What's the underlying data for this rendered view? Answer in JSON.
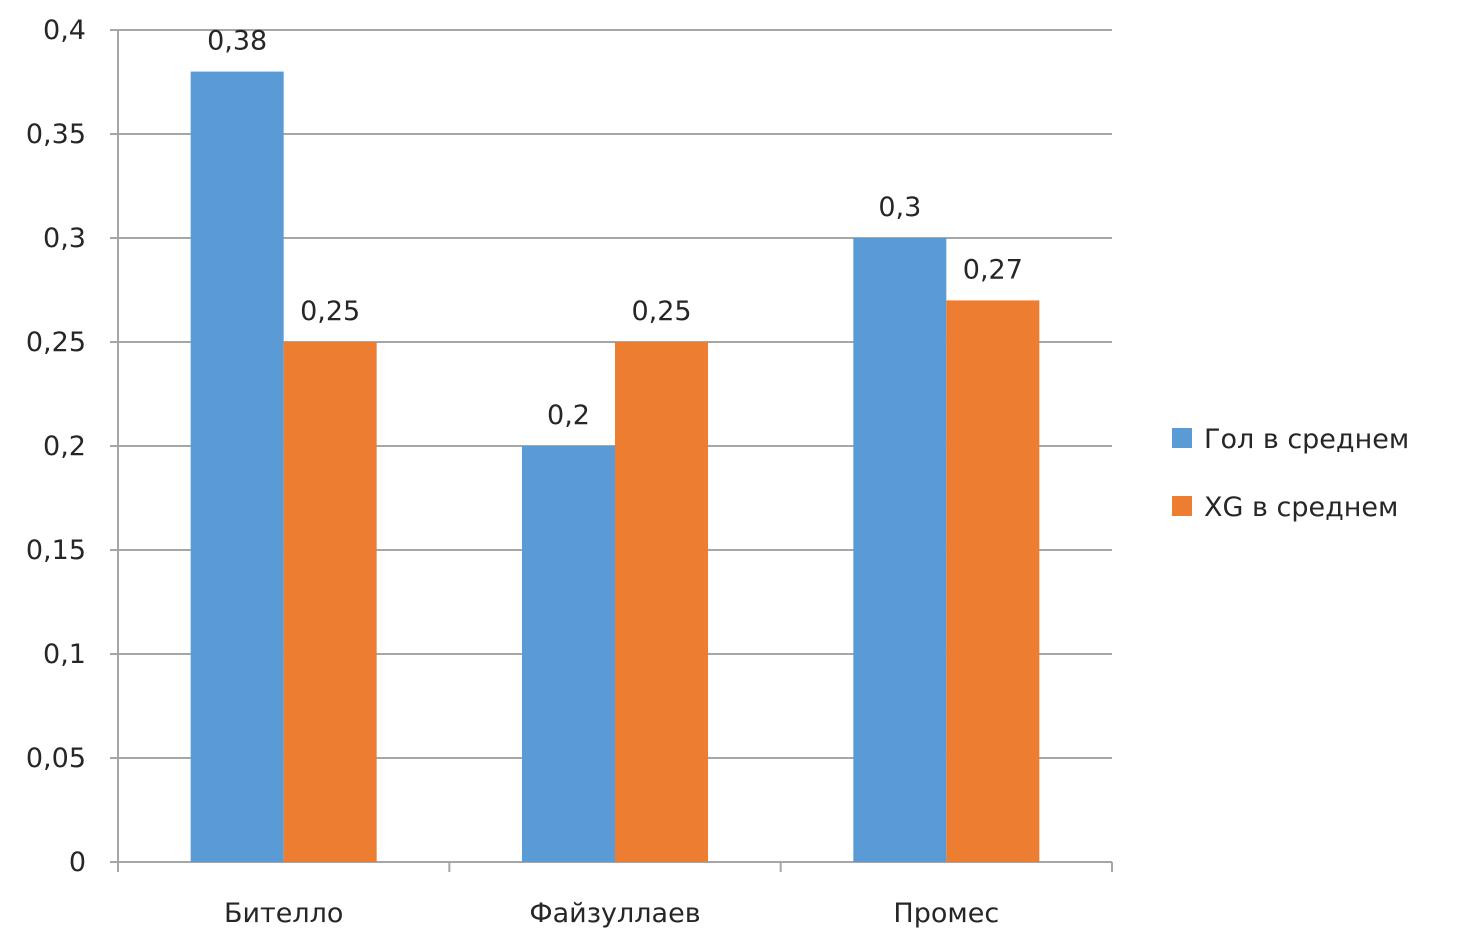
{
  "chart_data": {
    "type": "bar",
    "categories": [
      "Бителло",
      "Файзуллаев",
      "Промес"
    ],
    "series": [
      {
        "name": "Гол в среднем",
        "values": [
          0.38,
          0.2,
          0.3
        ],
        "labels": [
          "0,38",
          "0,2",
          "0,3"
        ],
        "color": "#5B9BD5"
      },
      {
        "name": "XG в среднем",
        "values": [
          0.25,
          0.25,
          0.27
        ],
        "labels": [
          "0,25",
          "0,25",
          "0,27"
        ],
        "color": "#ED7D31"
      }
    ],
    "ylim": [
      0,
      0.4
    ],
    "yticks": [
      0,
      0.05,
      0.1,
      0.15,
      0.2,
      0.25,
      0.3,
      0.35,
      0.4
    ],
    "ytick_labels": [
      "0",
      "0,05",
      "0,1",
      "0,15",
      "0,2",
      "0,25",
      "0,3",
      "0,35",
      "0,4"
    ],
    "grid": true,
    "legend_position": "right",
    "gridline_color": "#A6A6A6",
    "axis_color": "#A6A6A6"
  }
}
